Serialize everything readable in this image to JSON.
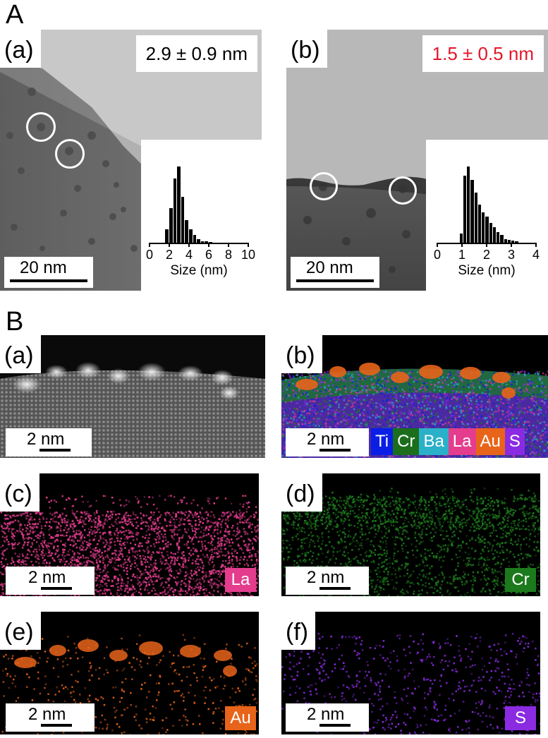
{
  "section_a": {
    "letter": "A",
    "panel_a": {
      "label": "(a)",
      "mean_size": "2.9 ± 0.9 nm",
      "scale_bar": "20 nm",
      "histogram": {
        "xlabel": "Size (nm)",
        "ticks": [
          "0",
          "2",
          "4",
          "6",
          "8",
          "10"
        ],
        "xlim": [
          0,
          10
        ],
        "bin_width": 0.4,
        "bin_starts": [
          1.6,
          2.0,
          2.4,
          2.8,
          3.2,
          3.6,
          4.0,
          4.4,
          4.8,
          5.2,
          5.6,
          6.0
        ],
        "relative_counts": [
          0.18,
          0.45,
          0.84,
          1.0,
          0.6,
          0.3,
          0.18,
          0.1,
          0.05,
          0.02,
          0.02,
          0.01
        ]
      }
    },
    "panel_b": {
      "label": "(b)",
      "mean_size": "1.5 ± 0.5 nm",
      "mean_color": "#e2172b",
      "scale_bar": "20 nm",
      "histogram": {
        "xlabel": "Size (nm)",
        "ticks": [
          "0",
          "1",
          "2",
          "3",
          "4"
        ],
        "xlim": [
          0,
          4
        ],
        "bin_width": 0.15,
        "bin_starts": [
          0.9,
          1.05,
          1.2,
          1.35,
          1.5,
          1.65,
          1.8,
          1.95,
          2.1,
          2.25,
          2.4,
          2.55,
          2.7,
          2.85,
          3.0,
          3.15
        ],
        "relative_counts": [
          0.12,
          0.88,
          1.0,
          0.82,
          0.66,
          0.5,
          0.4,
          0.34,
          0.26,
          0.2,
          0.14,
          0.1,
          0.05,
          0.04,
          0.03,
          0.02
        ]
      }
    }
  },
  "section_b": {
    "letter": "B",
    "panels": [
      {
        "label": "(a)",
        "scale_bar": "2 nm",
        "kind": "haadf"
      },
      {
        "label": "(b)",
        "scale_bar": "2 nm",
        "kind": "overlay",
        "legend": [
          {
            "text": "Ti",
            "color": "#0a1ee6"
          },
          {
            "text": "Cr",
            "color": "#1c6e1c"
          },
          {
            "text": "Ba",
            "color": "#2ab0c8"
          },
          {
            "text": "La",
            "color": "#e43d8e"
          },
          {
            "text": "Au",
            "color": "#e8641a"
          },
          {
            "text": "S",
            "color": "#8a2be2"
          }
        ]
      },
      {
        "label": "(c)",
        "scale_bar": "2 nm",
        "kind": "map",
        "element": "La",
        "color": "#e43d8e"
      },
      {
        "label": "(d)",
        "scale_bar": "2 nm",
        "kind": "map",
        "element": "Cr",
        "color": "#1c7a1c"
      },
      {
        "label": "(e)",
        "scale_bar": "2 nm",
        "kind": "map",
        "element": "Au",
        "color": "#e8641a"
      },
      {
        "label": "(f)",
        "scale_bar": "2 nm",
        "kind": "map",
        "element": "S",
        "color": "#8a2be2"
      }
    ]
  }
}
